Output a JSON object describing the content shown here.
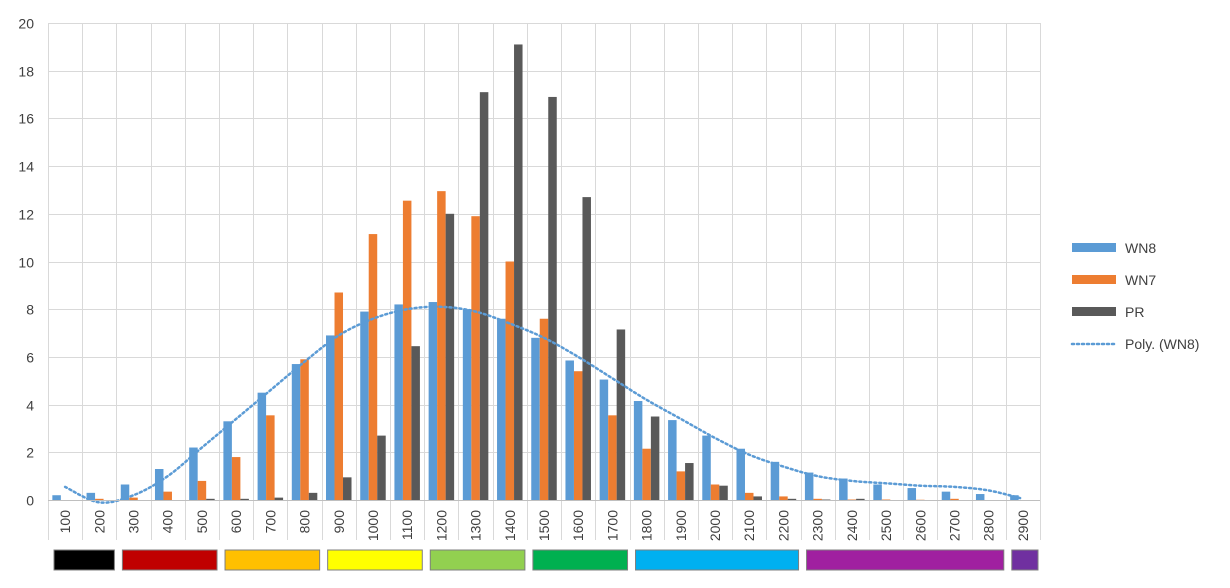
{
  "chart_data": {
    "type": "bar",
    "title": "",
    "xlabel": "",
    "ylabel": "",
    "ylim": [
      0,
      20
    ],
    "ytick_step": 2,
    "categories": [
      "100",
      "200",
      "300",
      "400",
      "500",
      "600",
      "700",
      "800",
      "900",
      "1000",
      "1100",
      "1200",
      "1300",
      "1400",
      "1500",
      "1600",
      "1700",
      "1800",
      "1900",
      "2000",
      "2100",
      "2200",
      "2300",
      "2400",
      "2500",
      "2600",
      "2700",
      "2800",
      "2900"
    ],
    "series": [
      {
        "name": "WN8",
        "color": "#5B9BD5",
        "values": [
          0.2,
          0.3,
          0.65,
          1.3,
          2.2,
          3.3,
          4.5,
          5.7,
          6.9,
          7.9,
          8.2,
          8.3,
          8.0,
          7.6,
          6.8,
          5.85,
          5.05,
          4.15,
          3.35,
          2.7,
          2.15,
          1.6,
          1.15,
          0.9,
          0.65,
          0.5,
          0.35,
          0.25,
          0.2
        ]
      },
      {
        "name": "WN7",
        "color": "#ED7D31",
        "values": [
          0,
          0.05,
          0.1,
          0.35,
          0.8,
          1.8,
          3.55,
          5.9,
          8.7,
          11.15,
          12.55,
          12.95,
          11.9,
          10.0,
          7.6,
          5.4,
          3.55,
          2.15,
          1.2,
          0.65,
          0.3,
          0.15,
          0.05,
          0.02,
          0.02,
          0.01,
          0.05,
          0,
          0
        ]
      },
      {
        "name": "PR",
        "color": "#595959",
        "values": [
          0,
          0,
          0,
          0,
          0.05,
          0.05,
          0.1,
          0.3,
          0.95,
          2.7,
          6.45,
          12.0,
          17.1,
          19.1,
          16.9,
          12.7,
          7.15,
          3.5,
          1.55,
          0.6,
          0.15,
          0.05,
          0.02,
          0.05,
          0,
          0,
          0,
          0,
          0
        ]
      }
    ],
    "trendline": {
      "name": "Poly. (WN8)",
      "color": "#5B9BD5",
      "style": "dotted",
      "values": [
        0.55,
        -0.1,
        0.2,
        1.0,
        2.2,
        3.4,
        4.6,
        5.8,
        6.9,
        7.6,
        8.0,
        8.1,
        7.9,
        7.4,
        6.8,
        6.0,
        5.1,
        4.2,
        3.4,
        2.6,
        1.9,
        1.4,
        1.0,
        0.8,
        0.7,
        0.6,
        0.55,
        0.4,
        0.05
      ]
    },
    "legend_position": "right",
    "grid": true,
    "color_bands": [
      {
        "from": "100",
        "to": "200",
        "color": "#000000"
      },
      {
        "from": "300",
        "to": "500",
        "color": "#C00000"
      },
      {
        "from": "600",
        "to": "800",
        "color": "#FFC000"
      },
      {
        "from": "900",
        "to": "1100",
        "color": "#FFFF00"
      },
      {
        "from": "1200",
        "to": "1400",
        "color": "#92D050"
      },
      {
        "from": "1500",
        "to": "1700",
        "color": "#00B050"
      },
      {
        "from": "1800",
        "to": "2200",
        "color": "#00B0F0"
      },
      {
        "from": "2300",
        "to": "2800",
        "color": "#A020A0"
      },
      {
        "from": "2900",
        "to": "2900",
        "color": "#7030A0"
      }
    ]
  }
}
